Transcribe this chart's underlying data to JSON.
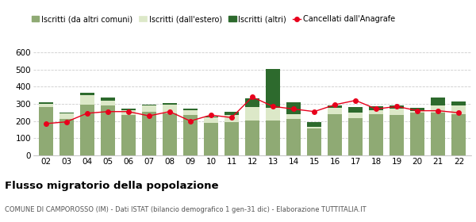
{
  "years": [
    "02",
    "03",
    "04",
    "05",
    "06",
    "07",
    "08",
    "09",
    "10",
    "11",
    "12",
    "13",
    "14",
    "15",
    "16",
    "17",
    "18",
    "19",
    "20",
    "21",
    "22"
  ],
  "iscritti_altri_comuni": [
    280,
    210,
    295,
    290,
    235,
    255,
    245,
    235,
    190,
    195,
    205,
    205,
    210,
    155,
    240,
    215,
    240,
    235,
    250,
    250,
    240
  ],
  "iscritti_estero": [
    20,
    35,
    55,
    30,
    30,
    35,
    50,
    30,
    30,
    40,
    75,
    70,
    30,
    10,
    35,
    35,
    25,
    35,
    10,
    40,
    50
  ],
  "iscritti_altri": [
    10,
    5,
    15,
    15,
    5,
    5,
    10,
    5,
    5,
    20,
    50,
    230,
    70,
    30,
    15,
    30,
    20,
    20,
    15,
    45,
    25
  ],
  "cancellati": [
    185,
    195,
    245,
    255,
    255,
    230,
    255,
    200,
    235,
    220,
    340,
    285,
    270,
    255,
    295,
    320,
    270,
    285,
    260,
    260,
    248
  ],
  "color_altri_comuni": "#8faa74",
  "color_estero": "#dce8c8",
  "color_altri": "#2d6a2d",
  "color_cancellati": "#e8001c",
  "title": "Flusso migratorio della popolazione",
  "subtitle": "COMUNE DI CAMPOROSSO (IM) - Dati ISTAT (bilancio demografico 1 gen-31 dic) - Elaborazione TUTTITALIA.IT",
  "legend_labels": [
    "Iscritti (da altri comuni)",
    "Iscritti (dall'estero)",
    "Iscritti (altri)",
    "Cancellati dall'Anagrafe"
  ],
  "ylim": [
    0,
    620
  ],
  "yticks": [
    0,
    100,
    200,
    300,
    400,
    500,
    600
  ],
  "background_color": "#ffffff",
  "grid_color": "#cccccc"
}
